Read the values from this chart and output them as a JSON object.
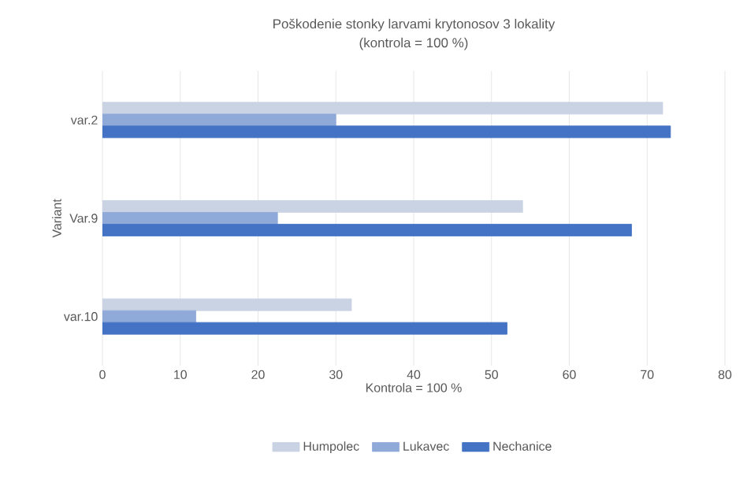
{
  "chart_data": {
    "type": "bar",
    "orientation": "horizontal",
    "title": "Poškodenie stonky  larvami krytonosov 3 lokality",
    "subtitle": "(kontrola = 100 %)",
    "xlabel": "Kontrola = 100 %",
    "ylabel": "Variant",
    "categories": [
      "var.2",
      "Var.9",
      "var.10"
    ],
    "series": [
      {
        "name": "Humpolec",
        "color": "#c9d3e3",
        "values": [
          72,
          54,
          32
        ]
      },
      {
        "name": "Lukavec",
        "color": "#8fa9d9",
        "values": [
          30,
          22.5,
          12
        ]
      },
      {
        "name": "Nechanice",
        "color": "#4472c4",
        "values": [
          73,
          68,
          52
        ]
      }
    ],
    "xlim": [
      0,
      80
    ],
    "xticks": [
      0,
      10,
      20,
      30,
      40,
      50,
      60,
      70,
      80
    ],
    "grid": "x",
    "legend": "bottom"
  }
}
